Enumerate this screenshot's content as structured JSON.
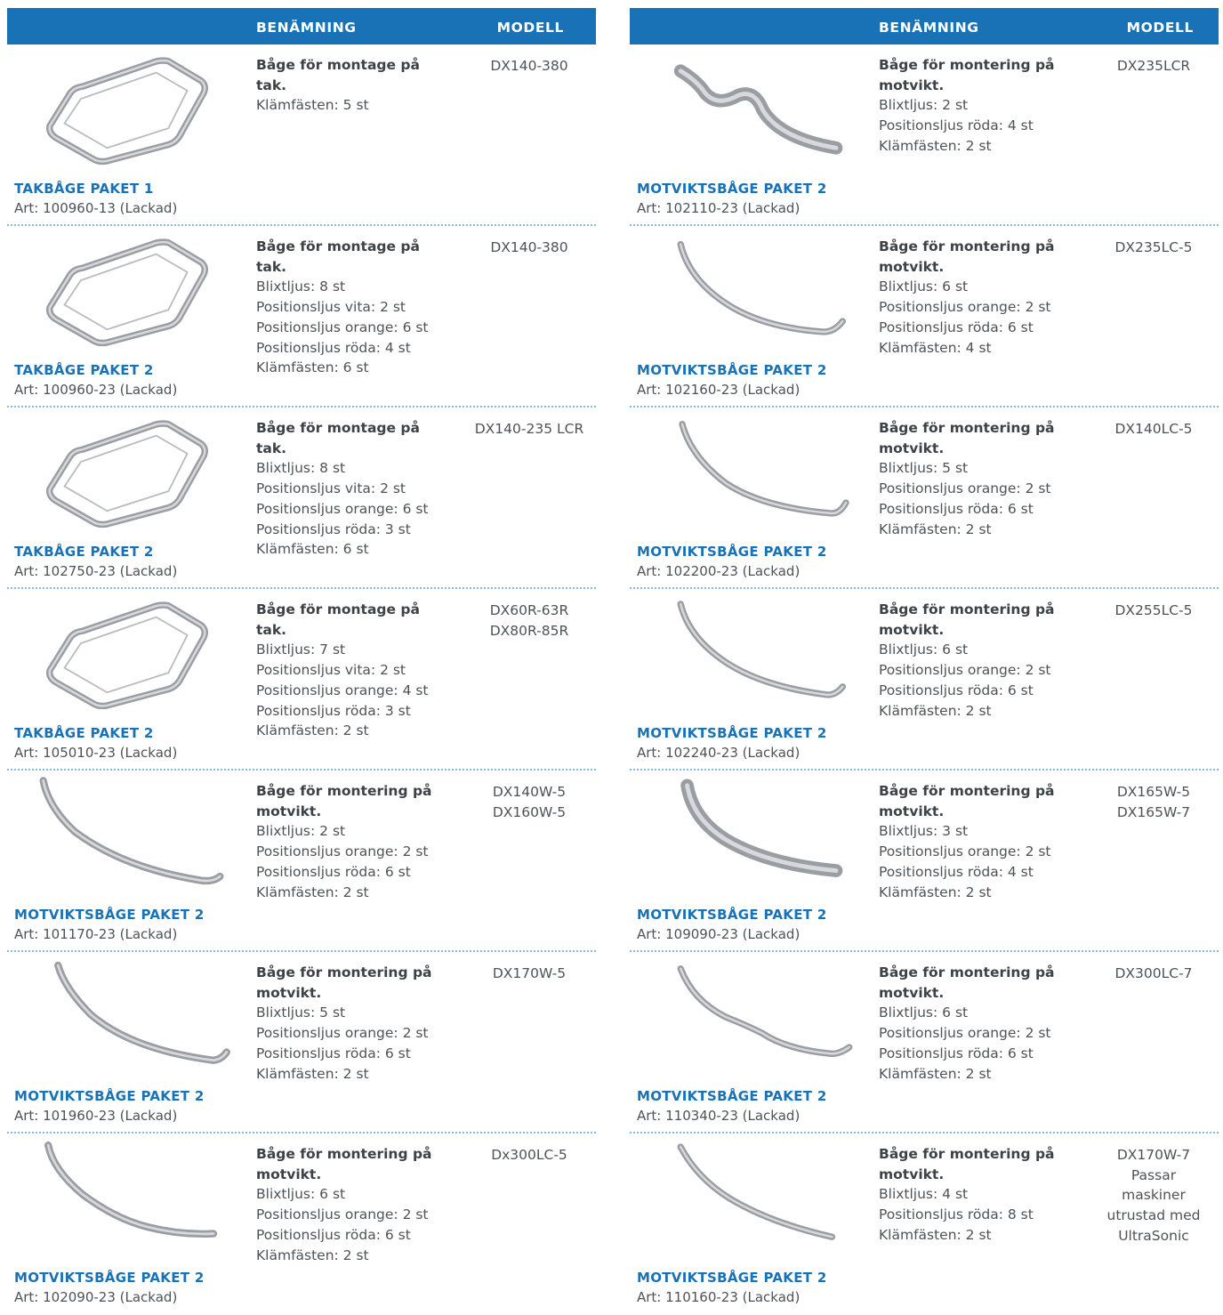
{
  "header": {
    "name_label": "BENÄMNING",
    "model_label": "MODELL"
  },
  "colors": {
    "accent": "#1a72b6",
    "text": "#4d5358",
    "divider": "#8fb5d6",
    "pipe": "#9a9ea3"
  },
  "left": [
    {
      "name": "TAKBÅGE PAKET 1",
      "art": "Art: 100960-13 (Lackad)",
      "title": "Båge för montage på tak.",
      "lines": [
        "Klämfästen: 5 st"
      ],
      "models": [
        "DX140-380"
      ],
      "icon": "roof-frame-icon"
    },
    {
      "name": "TAKBÅGE PAKET 2",
      "art": "Art: 100960-23 (Lackad)",
      "title": "Båge för montage på tak.",
      "lines": [
        "Blixtljus: 8 st",
        "Positionsljus vita: 2 st",
        "Positionsljus orange: 6 st",
        "Positionsljus röda: 4 st",
        "Klämfästen: 6 st"
      ],
      "models": [
        "DX140-380"
      ],
      "icon": "roof-frame-icon"
    },
    {
      "name": "TAKBÅGE PAKET 2",
      "art": "Art: 102750-23 (Lackad)",
      "title": "Båge för montage på tak.",
      "lines": [
        "Blixtljus: 8 st",
        "Positionsljus vita: 2 st",
        "Positionsljus orange: 6 st",
        "Positionsljus röda: 3 st",
        "Klämfästen: 6 st"
      ],
      "models": [
        "DX140-235 LCR"
      ],
      "icon": "roof-frame-icon"
    },
    {
      "name": "TAKBÅGE PAKET 2",
      "art": "Art: 105010-23 (Lackad)",
      "title": "Båge för montage på tak.",
      "lines": [
        "Blixtljus: 7 st",
        "Positionsljus vita: 2 st",
        "Positionsljus orange: 4 st",
        "Positionsljus röda: 3 st",
        "Klämfästen: 2 st"
      ],
      "models": [
        "DX60R-63R",
        "DX80R-85R"
      ],
      "icon": "roof-frame-icon"
    },
    {
      "name": "MOTVIKTSBÅGE PAKET 2",
      "art": "Art: 101170-23 (Lackad)",
      "title": "Båge för montering på motvikt.",
      "lines": [
        "Blixtljus: 2 st",
        "Positionsljus orange: 2 st",
        "Positionsljus röda: 6 st",
        "Klämfästen: 2 st"
      ],
      "models": [
        "DX140W-5",
        "DX160W-5"
      ],
      "icon": "counterweight-bar-icon"
    },
    {
      "name": "MOTVIKTSBÅGE PAKET 2",
      "art": "Art: 101960-23 (Lackad)",
      "title": "Båge för montering på motvikt.",
      "lines": [
        "Blixtljus: 5 st",
        "Positionsljus orange: 2 st",
        "Positionsljus röda: 6 st",
        "Klämfästen: 2 st"
      ],
      "models": [
        "DX170W-5"
      ],
      "icon": "counterweight-bar-icon"
    },
    {
      "name": "MOTVIKTSBÅGE PAKET 2",
      "art": "Art: 102090-23 (Lackad)",
      "title": "Båge för montering på motvikt.",
      "lines": [
        "Blixtljus: 6 st",
        "Positionsljus orange: 2 st",
        "Positionsljus röda: 6 st",
        "Klämfästen: 2 st"
      ],
      "models": [
        "Dx300LC-5"
      ],
      "icon": "counterweight-bar-icon"
    }
  ],
  "right": [
    {
      "name": "MOTVIKTSBÅGE PAKET 2",
      "art": "Art: 102110-23 (Lackad)",
      "title": "Båge för montering på motvikt.",
      "lines": [
        "Blixtljus: 2 st",
        "Positionsljus röda: 4 st",
        "Klämfästen: 2 st"
      ],
      "models": [
        "DX235LCR"
      ],
      "icon": "counterweight-bar-icon"
    },
    {
      "name": "MOTVIKTSBÅGE PAKET 2",
      "art": "Art: 102160-23 (Lackad)",
      "title": "Båge för montering på motvikt.",
      "lines": [
        "Blixtljus: 6 st",
        "Positionsljus orange: 2 st",
        "Positionsljus röda: 6 st",
        "Klämfästen: 4 st"
      ],
      "models": [
        "DX235LC-5"
      ],
      "icon": "counterweight-bar-icon"
    },
    {
      "name": "MOTVIKTSBÅGE PAKET 2",
      "art": "Art: 102200-23 (Lackad)",
      "title": "Båge för montering på motvikt.",
      "lines": [
        "Blixtljus: 5 st",
        "Positionsljus orange: 2 st",
        "Positionsljus röda: 6 st",
        "Klämfästen: 2 st"
      ],
      "models": [
        "DX140LC-5"
      ],
      "icon": "counterweight-bar-icon"
    },
    {
      "name": "MOTVIKTSBÅGE PAKET 2",
      "art": "Art: 102240-23 (Lackad)",
      "title": "Båge för montering på motvikt.",
      "lines": [
        "Blixtljus: 6 st",
        "Positionsljus orange: 2 st",
        "Positionsljus röda: 6 st",
        "Klämfästen: 2 st"
      ],
      "models": [
        "DX255LC-5"
      ],
      "icon": "counterweight-bar-icon"
    },
    {
      "name": "MOTVIKTSBÅGE PAKET 2",
      "art": "Art: 109090-23 (Lackad)",
      "title": "Båge för montering på motvikt.",
      "lines": [
        "Blixtljus: 3 st",
        "Positionsljus orange: 2 st",
        "Positionsljus röda: 4 st",
        "Klämfästen: 2 st"
      ],
      "models": [
        "DX165W-5",
        "DX165W-7"
      ],
      "icon": "counterweight-bar-icon"
    },
    {
      "name": "MOTVIKTSBÅGE PAKET 2",
      "art": "Art: 110340-23 (Lackad)",
      "title": "Båge för montering på motvikt.",
      "lines": [
        "Blixtljus: 6 st",
        "Positionsljus orange: 2 st",
        "Positionsljus röda: 6 st",
        "Klämfästen: 2 st"
      ],
      "models": [
        "DX300LC-7"
      ],
      "icon": "counterweight-bar-icon"
    },
    {
      "name": "MOTVIKTSBÅGE PAKET 2",
      "art": "Art: 110160-23 (Lackad)",
      "title": "Båge för montering på motvikt.",
      "lines": [
        "Blixtljus: 4 st",
        "Positionsljus röda: 8 st",
        "Klämfästen: 2 st"
      ],
      "models": [
        "DX170W-7",
        "Passar",
        "maskiner",
        "utrustad med",
        "UltraSonic"
      ],
      "icon": "counterweight-bar-icon"
    }
  ]
}
